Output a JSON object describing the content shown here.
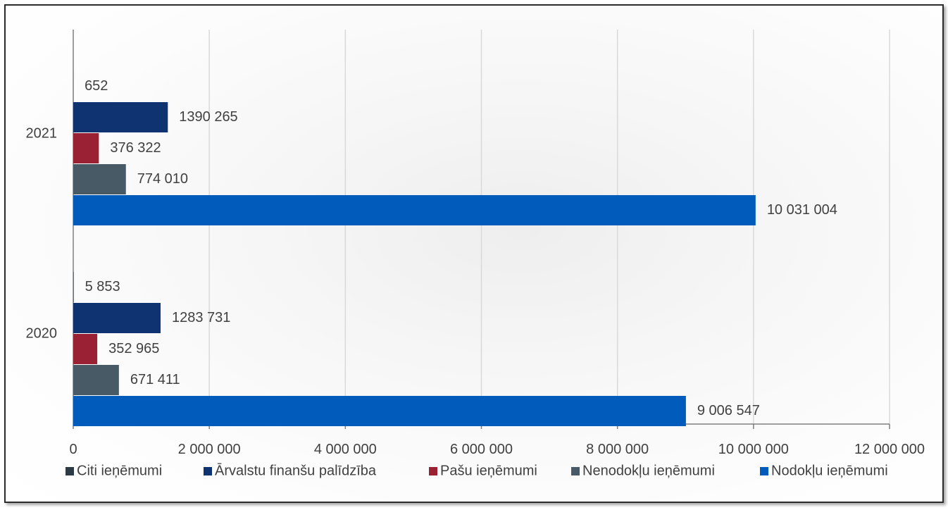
{
  "chart_data": {
    "type": "bar",
    "orientation": "horizontal",
    "title": "",
    "categories": [
      "2021",
      "2020"
    ],
    "series": [
      {
        "name": "Citi ieņēmumi",
        "color": "#2b3a45",
        "values": [
          652,
          5853
        ],
        "labels": [
          "652",
          "5 853"
        ]
      },
      {
        "name": "Ārvalstu finanšu palīdzība",
        "color": "#0e3370",
        "values": [
          1390265,
          1283731
        ],
        "labels": [
          "1390 265",
          "1283 731"
        ]
      },
      {
        "name": "Pašu ieņēmumi",
        "color": "#9a2134",
        "values": [
          376322,
          352965
        ],
        "labels": [
          "376 322",
          "352 965"
        ]
      },
      {
        "name": "Nenodokļu ieņēmumi",
        "color": "#485a66",
        "values": [
          774010,
          671411
        ],
        "labels": [
          "774 010",
          "671 411"
        ]
      },
      {
        "name": "Nodokļu ieņēmumi",
        "color": "#005bbb",
        "values": [
          10031004,
          9006547
        ],
        "labels": [
          "10 031 004",
          "9 006 547"
        ]
      }
    ],
    "xlim": [
      0,
      12000000
    ],
    "x_ticks": [
      0,
      2000000,
      4000000,
      6000000,
      8000000,
      10000000,
      12000000
    ],
    "x_tick_labels": [
      "0",
      "2 000 000",
      "4 000 000",
      "6 000 000",
      "8 000 000",
      "10 000 000",
      "12 000 000"
    ],
    "grid": "vertical",
    "legend_position": "bottom"
  }
}
